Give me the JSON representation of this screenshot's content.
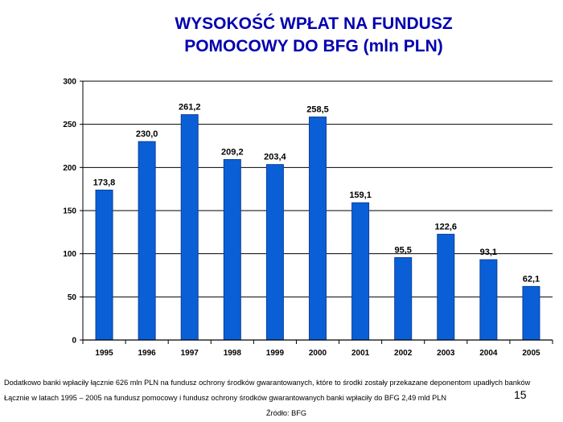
{
  "title_lines": [
    "WYSOKOŚĆ WPŁAT NA FUNDUSZ",
    "POMOCOWY DO BFG (mln PLN)"
  ],
  "chart_data": {
    "type": "bar",
    "title": "WYSOKOŚĆ WPŁAT NA FUNDUSZ POMOCOWY DO BFG (mln PLN)",
    "xlabel": "",
    "ylabel": "",
    "categories": [
      "1995",
      "1996",
      "1997",
      "1998",
      "1999",
      "2000",
      "2001",
      "2002",
      "2003",
      "2004",
      "2005"
    ],
    "values": [
      173.8,
      230.0,
      261.2,
      209.2,
      203.4,
      258.5,
      159.1,
      95.5,
      122.6,
      93.1,
      62.1
    ],
    "value_labels": [
      "173,8",
      "230,0",
      "261,2",
      "209,2",
      "203,4",
      "258,5",
      "159,1",
      "95,5",
      "122,6",
      "93,1",
      "62,1"
    ],
    "ylim": [
      0,
      300
    ],
    "yticks": [
      0,
      50,
      100,
      150,
      200,
      250,
      300
    ],
    "grid": true,
    "legend": "none",
    "bar_color": "#0b5fd6",
    "bar_edge_color": "#0a3f9a"
  },
  "notes": {
    "line1": "Dodatkowo banki wpłaciły łącznie 626 mln PLN na fundusz ochrony środków gwarantowanych, które to środki zostały przekazane deponentom upadłych banków",
    "line2": "Łącznie w latach 1995 – 2005 na fundusz pomocowy i fundusz ochrony środków gwarantowanych banki wpłaciły do BFG 2,49 mld PLN",
    "source": "Źródło: BFG"
  },
  "page_number": "15",
  "colors": {
    "title": "#0000b0",
    "bar": "#0b5fd6"
  }
}
